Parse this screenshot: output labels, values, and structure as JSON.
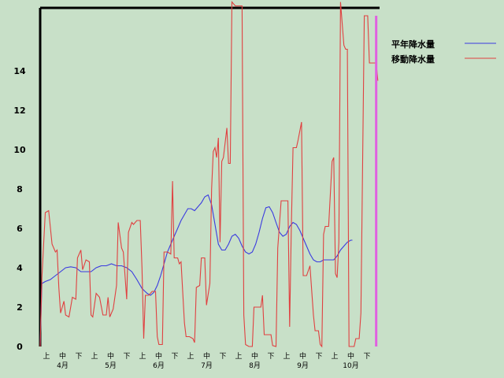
{
  "chart_data": {
    "type": "line",
    "title": "",
    "xlabel": "",
    "ylabel": "",
    "ylim": [
      0,
      17.2
    ],
    "y_ticks": [
      "0",
      "2",
      "4",
      "6",
      "8",
      "10",
      "12",
      "14"
    ],
    "month_labels": [
      "4月",
      "5月",
      "6月",
      "7月",
      "8月",
      "9月",
      "10月"
    ],
    "decade_labels": [
      "上",
      "中",
      "下"
    ],
    "grid": false,
    "legend_position": "right",
    "colors": {
      "normal": "#3a3ae0",
      "moving": "#e04040",
      "current_marker": "#e060e0",
      "background": "#c8e0c8",
      "axis": "#000000"
    },
    "series": [
      {
        "name": "平年降水量",
        "points": [
          [
            0,
            0
          ],
          [
            1,
            3.2
          ],
          [
            3,
            3.3
          ],
          [
            6,
            3.4
          ],
          [
            9,
            3.6
          ],
          [
            12,
            3.8
          ],
          [
            15,
            4.0
          ],
          [
            18,
            4.05
          ],
          [
            21,
            4.0
          ],
          [
            24,
            3.8
          ],
          [
            27,
            3.8
          ],
          [
            30,
            3.8
          ],
          [
            33,
            4.0
          ],
          [
            36,
            4.1
          ],
          [
            39,
            4.1
          ],
          [
            42,
            4.2
          ],
          [
            45,
            4.1
          ],
          [
            48,
            4.1
          ],
          [
            51,
            4.0
          ],
          [
            54,
            3.8
          ],
          [
            57,
            3.4
          ],
          [
            60,
            2.95
          ],
          [
            63,
            2.7
          ],
          [
            65,
            2.6
          ],
          [
            67,
            2.75
          ],
          [
            69,
            3.1
          ],
          [
            71,
            3.6
          ],
          [
            73,
            4.2
          ],
          [
            75,
            4.8
          ],
          [
            77,
            5.2
          ],
          [
            79,
            5.6
          ],
          [
            81,
            6.0
          ],
          [
            83,
            6.4
          ],
          [
            85,
            6.7
          ],
          [
            87,
            7.0
          ],
          [
            89,
            7.0
          ],
          [
            91,
            6.9
          ],
          [
            93,
            7.1
          ],
          [
            95,
            7.3
          ],
          [
            97,
            7.6
          ],
          [
            99,
            7.7
          ],
          [
            101,
            7.2
          ],
          [
            103,
            6.2
          ],
          [
            105,
            5.2
          ],
          [
            107,
            4.9
          ],
          [
            109,
            4.9
          ],
          [
            111,
            5.2
          ],
          [
            113,
            5.6
          ],
          [
            115,
            5.7
          ],
          [
            117,
            5.5
          ],
          [
            119,
            5.1
          ],
          [
            121,
            4.8
          ],
          [
            123,
            4.7
          ],
          [
            125,
            4.8
          ],
          [
            127,
            5.2
          ],
          [
            129,
            5.8
          ],
          [
            131,
            6.5
          ],
          [
            133,
            7.05
          ],
          [
            135,
            7.1
          ],
          [
            137,
            6.8
          ],
          [
            139,
            6.3
          ],
          [
            141,
            5.8
          ],
          [
            143,
            5.6
          ],
          [
            145,
            5.7
          ],
          [
            147,
            6.1
          ],
          [
            149,
            6.3
          ],
          [
            151,
            6.2
          ],
          [
            153,
            5.9
          ],
          [
            155,
            5.5
          ],
          [
            157,
            5.1
          ],
          [
            159,
            4.7
          ],
          [
            161,
            4.4
          ],
          [
            163,
            4.3
          ],
          [
            165,
            4.3
          ],
          [
            167,
            4.4
          ],
          [
            169,
            4.4
          ],
          [
            171,
            4.4
          ],
          [
            173,
            4.4
          ],
          [
            175,
            4.6
          ],
          [
            177,
            4.9
          ],
          [
            179,
            5.1
          ],
          [
            181,
            5.3
          ],
          [
            183,
            5.4
          ],
          [
            184,
            5.4
          ]
        ]
      },
      {
        "name": "移動降水量",
        "points": [
          [
            0,
            0
          ],
          [
            1,
            3.5
          ],
          [
            3,
            6.8
          ],
          [
            5,
            6.9
          ],
          [
            7,
            5.2
          ],
          [
            9,
            4.8
          ],
          [
            10,
            4.9
          ],
          [
            11,
            3.0
          ],
          [
            12,
            1.7
          ],
          [
            14,
            2.3
          ],
          [
            15,
            1.6
          ],
          [
            17,
            1.5
          ],
          [
            19,
            2.5
          ],
          [
            21,
            2.4
          ],
          [
            22,
            4.5
          ],
          [
            24,
            4.9
          ],
          [
            25,
            3.9
          ],
          [
            27,
            4.4
          ],
          [
            29,
            4.3
          ],
          [
            30,
            1.6
          ],
          [
            31,
            1.5
          ],
          [
            33,
            2.7
          ],
          [
            35,
            2.5
          ],
          [
            37,
            1.6
          ],
          [
            39,
            1.6
          ],
          [
            40,
            2.5
          ],
          [
            41,
            1.5
          ],
          [
            43,
            1.9
          ],
          [
            45,
            3.1
          ],
          [
            46,
            6.3
          ],
          [
            48,
            5.0
          ],
          [
            49,
            4.8
          ],
          [
            51,
            2.4
          ],
          [
            52,
            5.8
          ],
          [
            54,
            6.3
          ],
          [
            55,
            6.2
          ],
          [
            57,
            6.4
          ],
          [
            59,
            6.4
          ],
          [
            60,
            4.0
          ],
          [
            61,
            0.4
          ],
          [
            62,
            2.6
          ],
          [
            64,
            2.6
          ],
          [
            66,
            2.8
          ],
          [
            68,
            2.8
          ],
          [
            69,
            0.5
          ],
          [
            70,
            0.1
          ],
          [
            72,
            0.1
          ],
          [
            73,
            4.8
          ],
          [
            75,
            4.8
          ],
          [
            77,
            4.7
          ],
          [
            78,
            8.4
          ],
          [
            79,
            4.5
          ],
          [
            81,
            4.5
          ],
          [
            82,
            4.2
          ],
          [
            83,
            4.3
          ],
          [
            85,
            1.2
          ],
          [
            86,
            0.5
          ],
          [
            88,
            0.5
          ],
          [
            90,
            0.4
          ],
          [
            91,
            0.2
          ],
          [
            92,
            3.0
          ],
          [
            94,
            3.1
          ],
          [
            95,
            4.5
          ],
          [
            97,
            4.5
          ],
          [
            98,
            2.1
          ],
          [
            100,
            3.2
          ],
          [
            101,
            8.0
          ],
          [
            102,
            9.9
          ],
          [
            103,
            10.1
          ],
          [
            104,
            9.6
          ],
          [
            105,
            10.6
          ],
          [
            106,
            5.3
          ],
          [
            107,
            9.4
          ],
          [
            108,
            9.6
          ],
          [
            110,
            11.1
          ],
          [
            111,
            9.3
          ],
          [
            112,
            9.3
          ],
          [
            113,
            17.5
          ],
          [
            115,
            17.3
          ],
          [
            117,
            17.3
          ],
          [
            119,
            17.3
          ],
          [
            120,
            1.6
          ],
          [
            121,
            0.1
          ],
          [
            123,
            0.0
          ],
          [
            125,
            0.0
          ],
          [
            126,
            2.0
          ],
          [
            128,
            2.0
          ],
          [
            130,
            2.0
          ],
          [
            131,
            2.6
          ],
          [
            132,
            0.6
          ],
          [
            134,
            0.6
          ],
          [
            136,
            0.6
          ],
          [
            137,
            0.05
          ],
          [
            139,
            0.0
          ],
          [
            140,
            5.0
          ],
          [
            142,
            7.4
          ],
          [
            144,
            7.4
          ],
          [
            146,
            7.4
          ],
          [
            147,
            1.0
          ],
          [
            148,
            6.0
          ],
          [
            149,
            10.1
          ],
          [
            151,
            10.1
          ],
          [
            152,
            10.5
          ],
          [
            154,
            11.4
          ],
          [
            155,
            3.6
          ],
          [
            157,
            3.6
          ],
          [
            159,
            4.1
          ],
          [
            161,
            1.6
          ],
          [
            162,
            0.8
          ],
          [
            164,
            0.8
          ],
          [
            165,
            0.1
          ],
          [
            166,
            0.0
          ],
          [
            167,
            5.7
          ],
          [
            168,
            6.1
          ],
          [
            170,
            6.1
          ],
          [
            172,
            9.4
          ],
          [
            173,
            9.6
          ],
          [
            174,
            3.7
          ],
          [
            175,
            3.5
          ],
          [
            176,
            5.3
          ],
          [
            177,
            17.5
          ],
          [
            179,
            15.3
          ],
          [
            180,
            15.1
          ],
          [
            181,
            15.1
          ],
          [
            182,
            0.0
          ],
          [
            183,
            0.0
          ],
          [
            185,
            0.0
          ],
          [
            186,
            0.4
          ],
          [
            188,
            0.4
          ],
          [
            189,
            1.7
          ],
          [
            191,
            16.8
          ],
          [
            193,
            16.8
          ],
          [
            194,
            14.4
          ],
          [
            196,
            14.4
          ],
          [
            198,
            14.4
          ],
          [
            199,
            13.5
          ]
        ]
      }
    ],
    "current_marker_x": 198
  }
}
